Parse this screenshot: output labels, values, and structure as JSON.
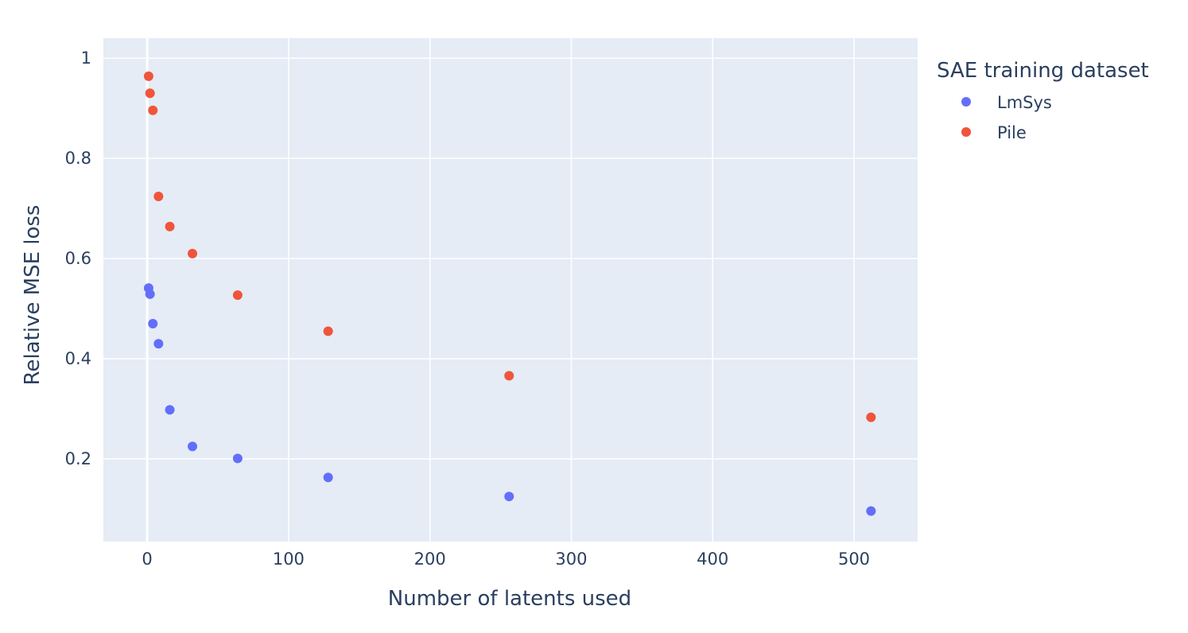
{
  "chart_data": {
    "type": "scatter",
    "xlabel": "Number of latents used",
    "ylabel": "Relative MSE loss",
    "xlim": [
      -31,
      545
    ],
    "ylim": [
      0.035,
      1.04
    ],
    "x_ticks": [
      0,
      100,
      200,
      300,
      400,
      500
    ],
    "y_ticks": [
      0.2,
      0.4,
      0.6,
      0.8,
      1
    ],
    "x_tick_labels": [
      "0",
      "100",
      "200",
      "300",
      "400",
      "500"
    ],
    "y_tick_labels": [
      "0.2",
      "0.4",
      "0.6",
      "0.8",
      "1"
    ],
    "grid": true,
    "legend": {
      "title": "SAE training dataset",
      "placement": "right"
    },
    "series": [
      {
        "name": "LmSys",
        "color": "#636efa",
        "x": [
          1,
          2,
          4,
          8,
          16,
          32,
          64,
          128,
          256,
          512
        ],
        "y": [
          0.541,
          0.529,
          0.47,
          0.43,
          0.298,
          0.225,
          0.201,
          0.163,
          0.125,
          0.096
        ]
      },
      {
        "name": "Pile",
        "color": "#ef553b",
        "x": [
          1,
          2,
          4,
          8,
          16,
          32,
          64,
          128,
          256,
          512
        ],
        "y": [
          0.964,
          0.93,
          0.896,
          0.724,
          0.664,
          0.61,
          0.527,
          0.455,
          0.366,
          0.283
        ]
      }
    ]
  },
  "colors": {
    "plot_background": "#e5ecf6",
    "grid": "#ffffff",
    "text": "#2a3f5f"
  }
}
